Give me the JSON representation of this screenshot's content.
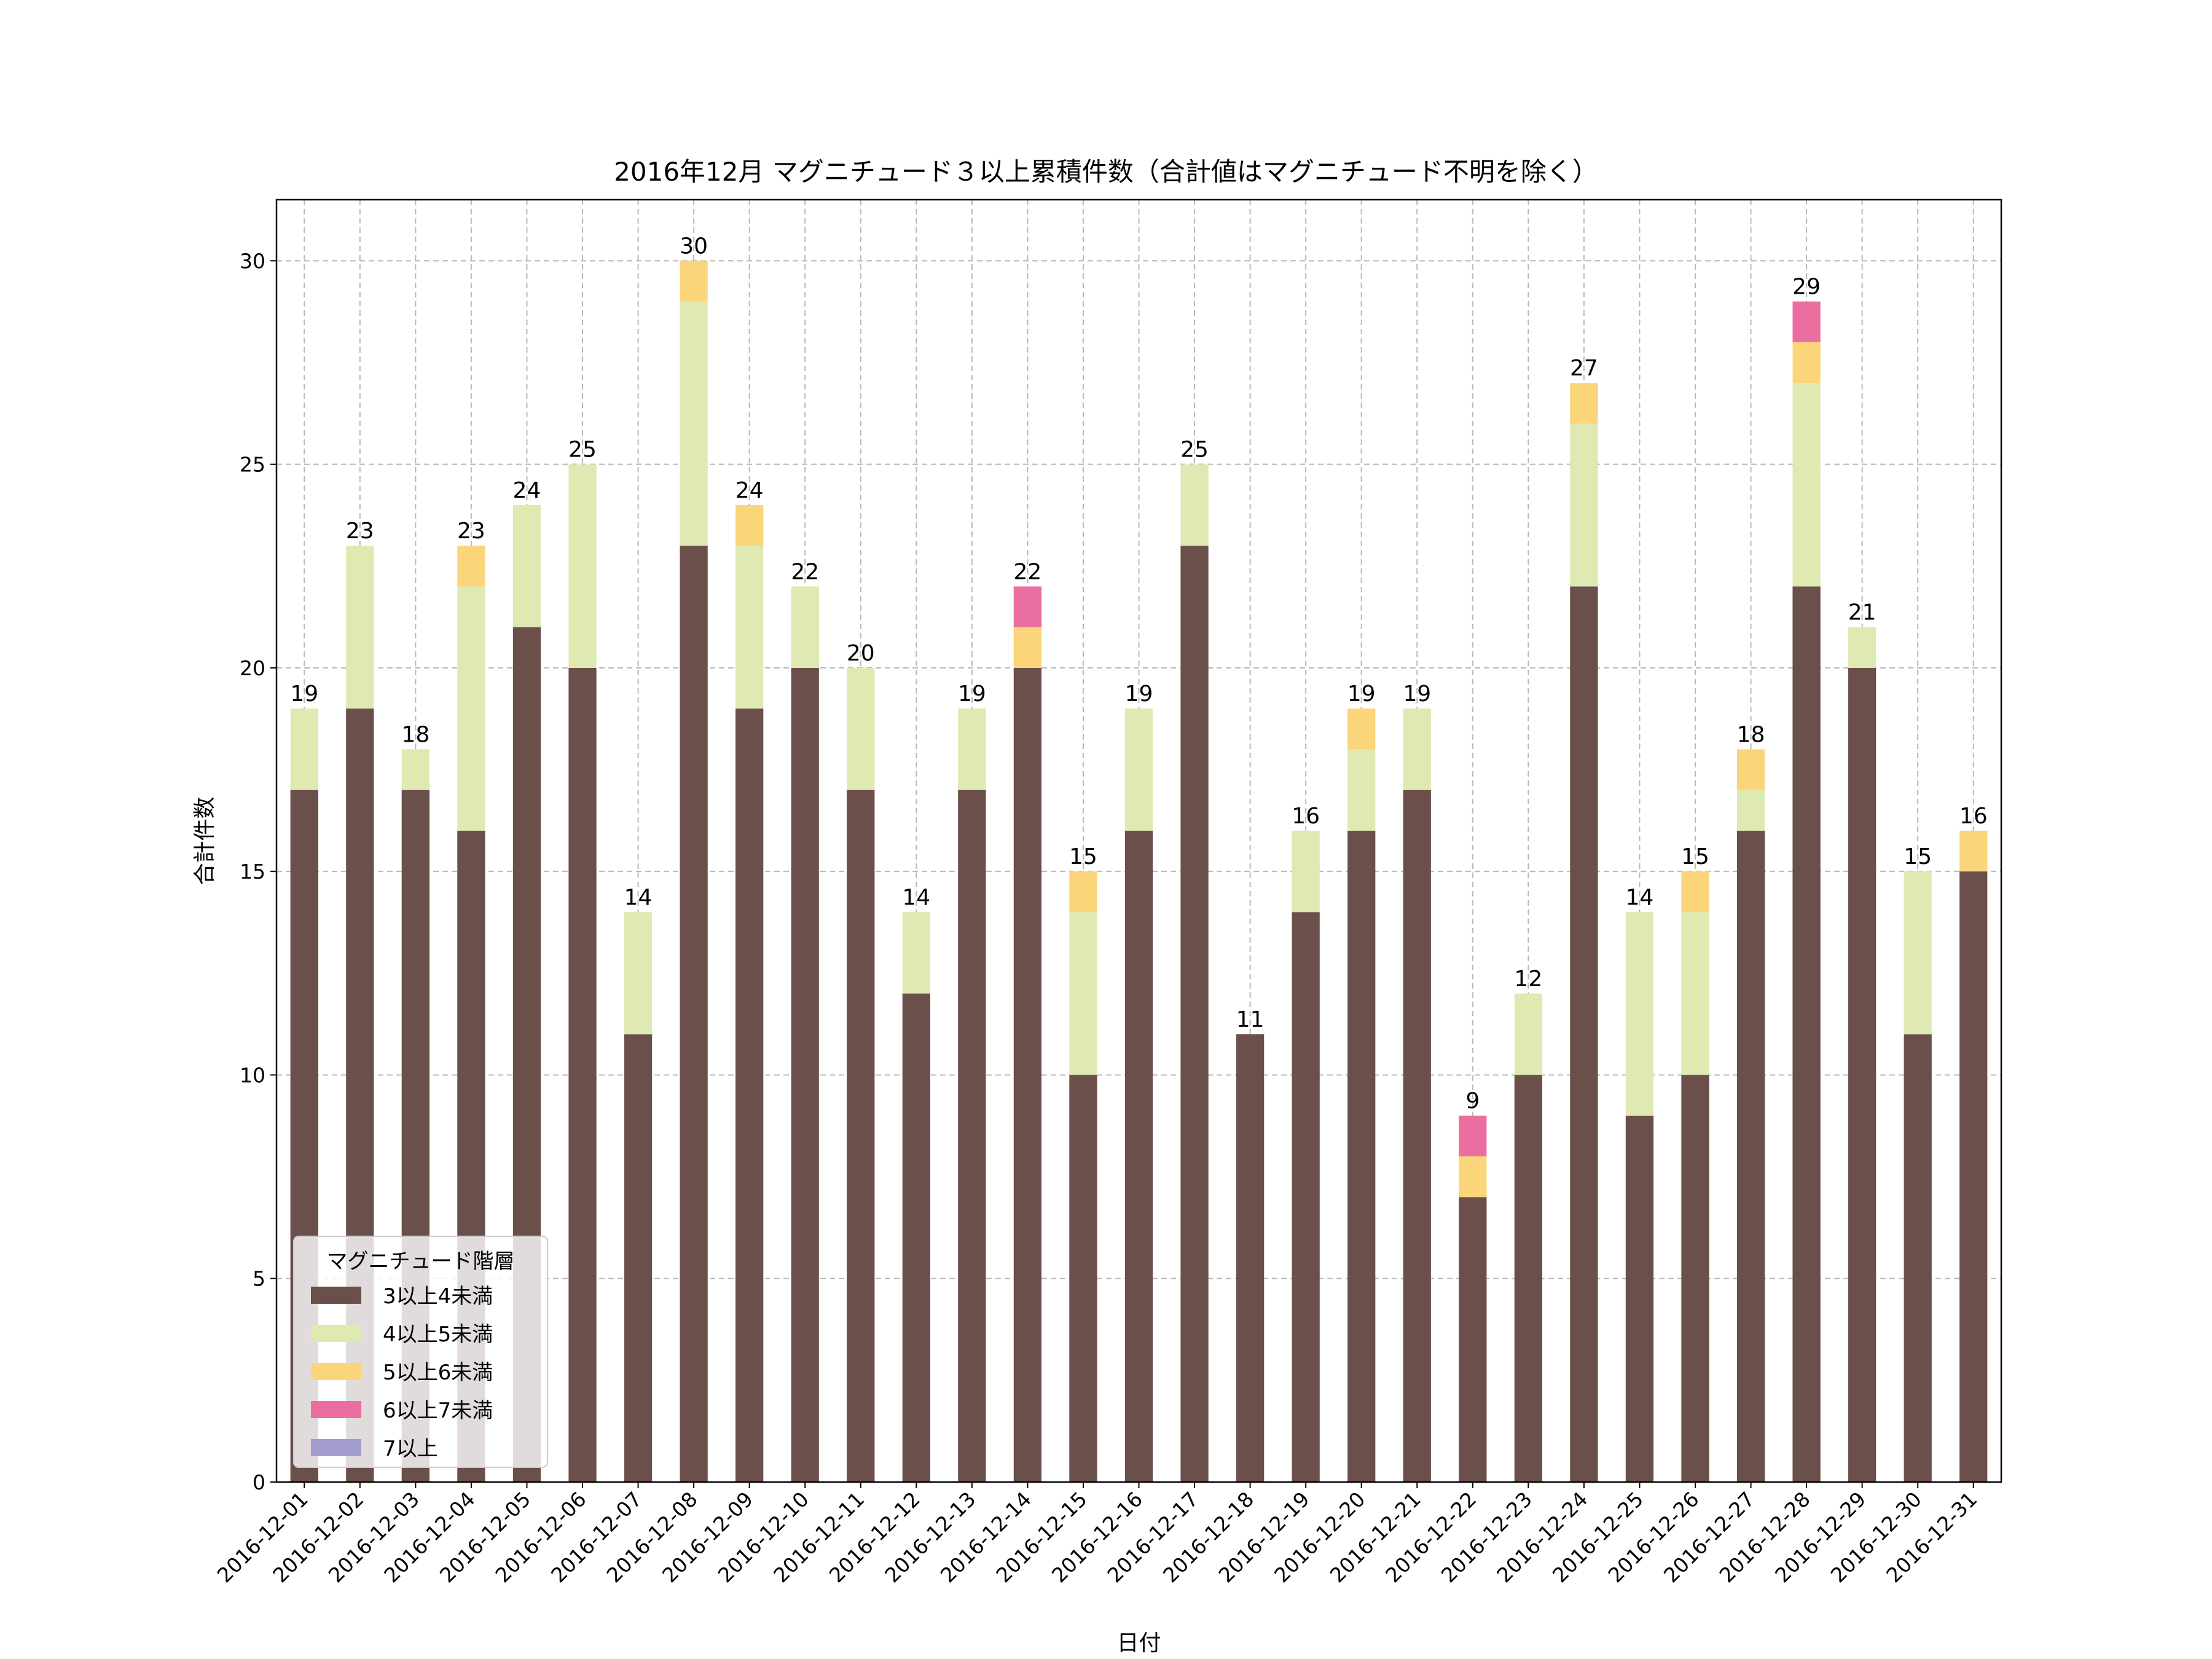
{
  "chart_data": {
    "type": "bar",
    "stacked": true,
    "title": "2016年12月 マグニチュード３以上累積件数（合計値はマグニチュード不明を除く）",
    "xlabel": "日付",
    "ylabel": "合計件数",
    "ylim": [
      0,
      31.5
    ],
    "yticks": [
      "0",
      "5",
      "10",
      "15",
      "20",
      "25",
      "30"
    ],
    "grid": true,
    "categories": [
      "2016-12-01",
      "2016-12-02",
      "2016-12-03",
      "2016-12-04",
      "2016-12-05",
      "2016-12-06",
      "2016-12-07",
      "2016-12-08",
      "2016-12-09",
      "2016-12-10",
      "2016-12-11",
      "2016-12-12",
      "2016-12-13",
      "2016-12-14",
      "2016-12-15",
      "2016-12-16",
      "2016-12-17",
      "2016-12-18",
      "2016-12-19",
      "2016-12-20",
      "2016-12-21",
      "2016-12-22",
      "2016-12-23",
      "2016-12-24",
      "2016-12-25",
      "2016-12-26",
      "2016-12-27",
      "2016-12-28",
      "2016-12-29",
      "2016-12-30",
      "2016-12-31"
    ],
    "series": [
      {
        "name": "3以上4未満",
        "color": "#6b4f4a",
        "values": [
          17,
          19,
          17,
          16,
          21,
          20,
          11,
          23,
          19,
          20,
          17,
          12,
          17,
          20,
          10,
          16,
          23,
          11,
          14,
          16,
          17,
          7,
          10,
          22,
          9,
          10,
          16,
          22,
          20,
          11,
          15
        ]
      },
      {
        "name": "4以上5未満",
        "color": "#dfe9b2",
        "values": [
          2,
          4,
          1,
          6,
          3,
          5,
          3,
          6,
          4,
          2,
          3,
          2,
          2,
          0,
          4,
          3,
          2,
          0,
          2,
          2,
          2,
          0,
          2,
          4,
          5,
          4,
          1,
          5,
          1,
          4,
          0
        ]
      },
      {
        "name": "5以上6未満",
        "color": "#fbd57a",
        "values": [
          0,
          0,
          0,
          1,
          0,
          0,
          0,
          1,
          1,
          0,
          0,
          0,
          0,
          1,
          1,
          0,
          0,
          0,
          0,
          1,
          0,
          1,
          0,
          1,
          0,
          1,
          1,
          1,
          0,
          0,
          1
        ]
      },
      {
        "name": "6以上7未満",
        "color": "#ea6fa0",
        "values": [
          0,
          0,
          0,
          0,
          0,
          0,
          0,
          0,
          0,
          0,
          0,
          0,
          0,
          1,
          0,
          0,
          0,
          0,
          0,
          0,
          0,
          1,
          0,
          0,
          0,
          0,
          0,
          1,
          0,
          0,
          0
        ]
      },
      {
        "name": "7以上",
        "color": "#a49ccc",
        "values": [
          0,
          0,
          0,
          0,
          0,
          0,
          0,
          0,
          0,
          0,
          0,
          0,
          0,
          0,
          0,
          0,
          0,
          0,
          0,
          0,
          0,
          0,
          0,
          0,
          0,
          0,
          0,
          0,
          0,
          0,
          0
        ]
      }
    ],
    "totals": [
      19,
      23,
      18,
      23,
      24,
      25,
      14,
      30,
      24,
      22,
      20,
      14,
      19,
      22,
      15,
      19,
      25,
      11,
      16,
      19,
      19,
      9,
      12,
      27,
      14,
      15,
      18,
      29,
      21,
      15,
      16
    ],
    "legend": {
      "title": "マグニチュード階層",
      "position": "lower-left"
    }
  }
}
